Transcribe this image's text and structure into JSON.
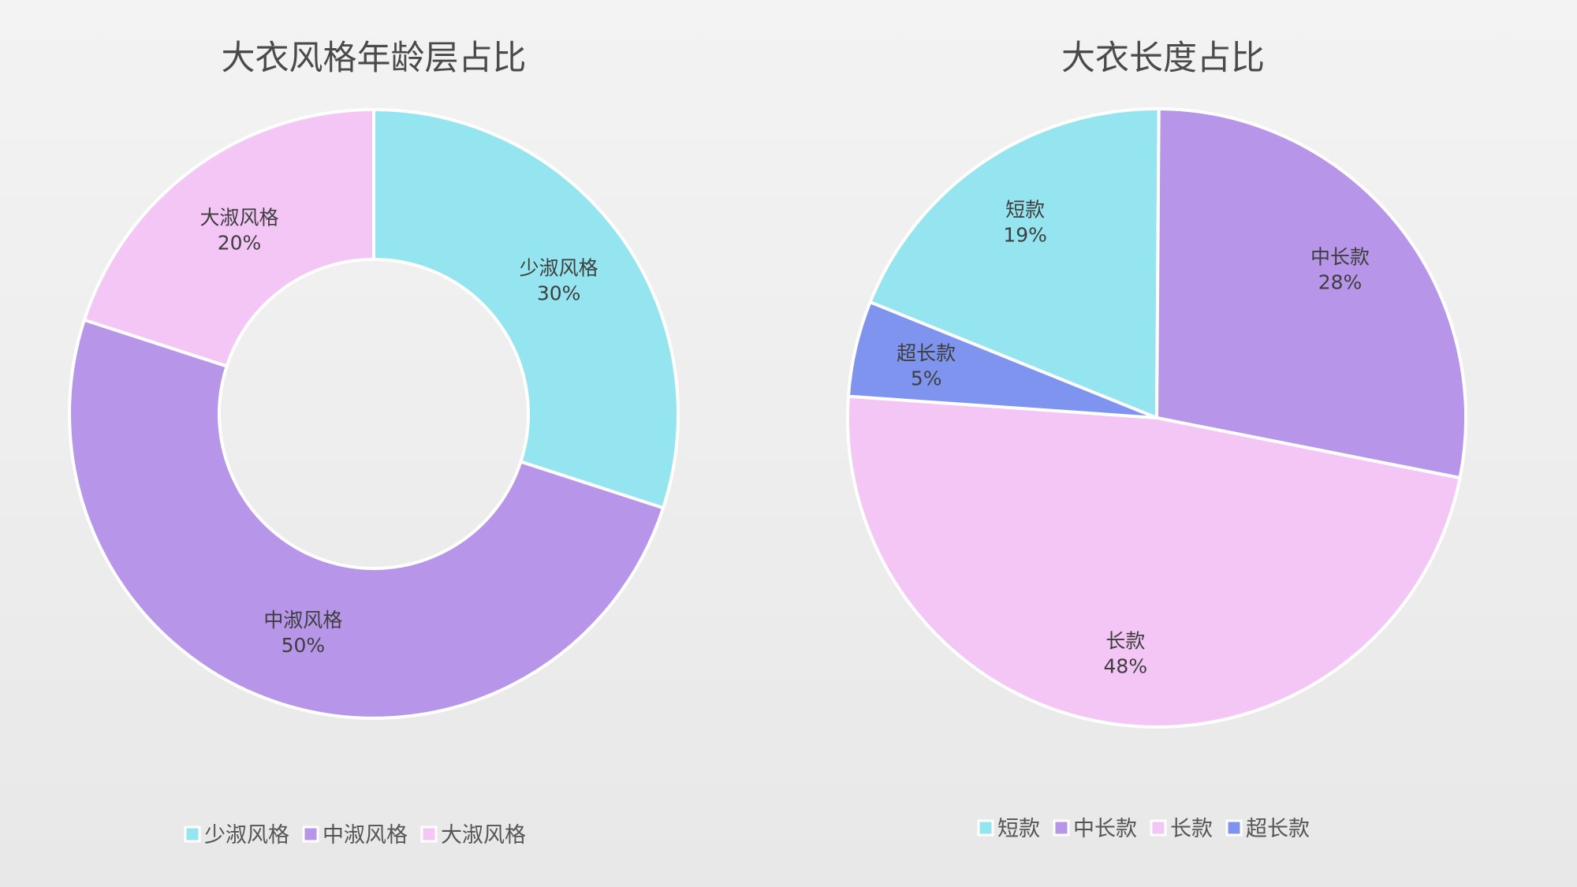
{
  "chart_data": [
    {
      "type": "pie",
      "title": "大衣风格年龄层占比",
      "categories": [
        "少淑风格",
        "中淑风格",
        "大淑风格"
      ],
      "values": [
        30,
        50,
        20
      ],
      "colors": [
        "#95e5f0",
        "#b795e8",
        "#f4c6f6"
      ],
      "donut": true,
      "legend": "bottom"
    },
    {
      "type": "pie",
      "title": "大衣长度占比",
      "categories": [
        "短款",
        "中长款",
        "长款",
        "超长款"
      ],
      "values": [
        19,
        28,
        48,
        5
      ],
      "colors": [
        "#95e5f0",
        "#b795e8",
        "#f4c6f6",
        "#7f94ee"
      ],
      "donut": false,
      "legend": "bottom"
    }
  ]
}
